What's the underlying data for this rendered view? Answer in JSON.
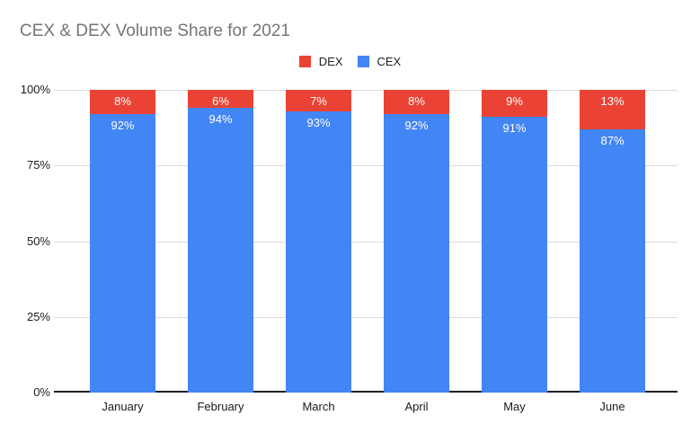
{
  "chart_data": {
    "type": "bar",
    "stacked": true,
    "title": "CEX & DEX Volume Share for 2021",
    "title_color": "#757575",
    "categories": [
      "January",
      "February",
      "March",
      "April",
      "May",
      "June"
    ],
    "series": [
      {
        "name": "DEX",
        "color": "#EA4335",
        "values": [
          8,
          6,
          7,
          8,
          9,
          13
        ],
        "data_labels": [
          "8%",
          "6%",
          "7%",
          "8%",
          "9%",
          "13%"
        ]
      },
      {
        "name": "CEX",
        "color": "#4285F4",
        "values": [
          92,
          94,
          93,
          92,
          91,
          87
        ],
        "data_labels": [
          "92%",
          "94%",
          "93%",
          "92%",
          "91%",
          "87%"
        ]
      }
    ],
    "xlabel": "",
    "ylabel": "",
    "ylim": [
      0,
      100
    ],
    "yticks": [
      {
        "label": "0%",
        "value": 0
      },
      {
        "label": "25%",
        "value": 25
      },
      {
        "label": "50%",
        "value": 50
      },
      {
        "label": "75%",
        "value": 75
      },
      {
        "label": "100%",
        "value": 100
      }
    ],
    "grid": true,
    "legend_position": "top-center",
    "data_label_color": "#ffffff"
  }
}
